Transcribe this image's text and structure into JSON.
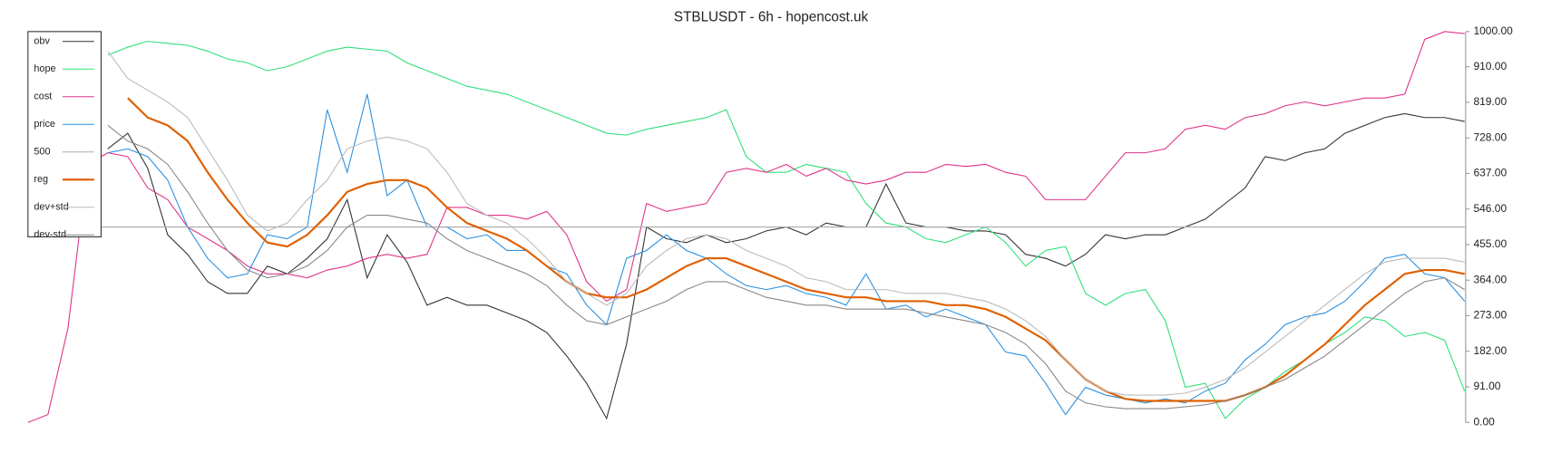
{
  "chart_data": {
    "type": "line",
    "title": "STBLUSDT - 6h - hopencost.uk",
    "ylim": [
      0,
      1000
    ],
    "yticks": [
      {
        "value": 0,
        "label": "0.00"
      },
      {
        "value": 91,
        "label": "91.00"
      },
      {
        "value": 182,
        "label": "182.00"
      },
      {
        "value": 273,
        "label": "273.00"
      },
      {
        "value": 364,
        "label": "364.00"
      },
      {
        "value": 455,
        "label": "455.00"
      },
      {
        "value": 546,
        "label": "546.00"
      },
      {
        "value": 637,
        "label": "637.00"
      },
      {
        "value": 728,
        "label": "728.00"
      },
      {
        "value": 819,
        "label": "819.00"
      },
      {
        "value": 910,
        "label": "910.00"
      },
      {
        "value": 1000,
        "label": "1000.00"
      }
    ],
    "legend": "upper left",
    "series": [
      {
        "name": "obv",
        "color": "#333333",
        "width": 1,
        "values": [
          null,
          null,
          null,
          null,
          700,
          740,
          650,
          480,
          430,
          360,
          330,
          330,
          400,
          380,
          420,
          470,
          570,
          370,
          480,
          410,
          300,
          320,
          300,
          300,
          280,
          260,
          230,
          170,
          100,
          10,
          200,
          500,
          470,
          460,
          480,
          460,
          470,
          490,
          500,
          480,
          510,
          500,
          500,
          610,
          510,
          500,
          500,
          490,
          490,
          480,
          430,
          420,
          400,
          430,
          480,
          470,
          480,
          480,
          500,
          520,
          560,
          600,
          680,
          670,
          690,
          700,
          740,
          760,
          780,
          790,
          780,
          780,
          770
        ]
      },
      {
        "name": "hope",
        "color": "#2ee07a",
        "width": 1,
        "values": [
          null,
          null,
          null,
          null,
          940,
          960,
          975,
          970,
          965,
          950,
          930,
          920,
          900,
          910,
          930,
          950,
          960,
          955,
          950,
          920,
          900,
          880,
          860,
          850,
          840,
          820,
          800,
          780,
          760,
          740,
          735,
          750,
          760,
          770,
          780,
          800,
          680,
          640,
          640,
          660,
          650,
          640,
          560,
          510,
          500,
          470,
          460,
          480,
          500,
          460,
          400,
          440,
          450,
          330,
          300,
          330,
          340,
          260,
          90,
          100,
          10,
          60,
          90,
          130,
          160,
          200,
          230,
          270,
          260,
          220,
          230,
          210,
          80
        ]
      },
      {
        "name": "cost",
        "color": "#e0338a",
        "width": 1,
        "values": [
          0,
          20,
          240,
          660,
          690,
          680,
          600,
          570,
          500,
          470,
          440,
          400,
          380,
          380,
          370,
          390,
          400,
          420,
          430,
          420,
          430,
          550,
          550,
          530,
          530,
          520,
          540,
          480,
          360,
          310,
          340,
          560,
          540,
          550,
          560,
          640,
          650,
          640,
          660,
          630,
          650,
          620,
          610,
          620,
          640,
          640,
          660,
          655,
          660,
          640,
          630,
          570,
          570,
          570,
          630,
          690,
          690,
          700,
          750,
          760,
          750,
          780,
          790,
          810,
          820,
          810,
          820,
          830,
          830,
          840,
          980,
          1000,
          995
        ]
      },
      {
        "name": "price",
        "color": "#2a8fe0",
        "width": 1,
        "values": [
          null,
          null,
          null,
          null,
          690,
          700,
          680,
          620,
          500,
          420,
          370,
          380,
          480,
          470,
          500,
          800,
          640,
          840,
          580,
          620,
          500,
          500,
          470,
          480,
          440,
          440,
          400,
          380,
          300,
          250,
          420,
          440,
          480,
          440,
          420,
          380,
          350,
          340,
          350,
          330,
          320,
          300,
          380,
          290,
          300,
          270,
          290,
          270,
          250,
          180,
          170,
          100,
          20,
          90,
          70,
          60,
          50,
          60,
          50,
          80,
          100,
          160,
          200,
          250,
          270,
          280,
          310,
          360,
          420,
          430,
          380,
          370,
          310
        ]
      },
      {
        "name": "500",
        "color": "#aaaaaa",
        "width": 1,
        "values": [
          500,
          500,
          500,
          500,
          500,
          500,
          500,
          500,
          500,
          500,
          500,
          500,
          500,
          500,
          500,
          500,
          500,
          500,
          500,
          500,
          500,
          500,
          500,
          500,
          500,
          500,
          500,
          500,
          500,
          500,
          500,
          500,
          500,
          500,
          500,
          500,
          500,
          500,
          500,
          500,
          500,
          500,
          500,
          500,
          500,
          500,
          500,
          500,
          500,
          500,
          500,
          500,
          500,
          500,
          500,
          500,
          500,
          500,
          500,
          500,
          500,
          500,
          500,
          500,
          500,
          500,
          500,
          500,
          500,
          500,
          500,
          500,
          500
        ]
      },
      {
        "name": "reg",
        "color": "#e06000",
        "width": 2,
        "values": [
          null,
          null,
          null,
          null,
          null,
          830,
          780,
          760,
          720,
          640,
          570,
          510,
          460,
          450,
          480,
          530,
          590,
          610,
          620,
          620,
          600,
          550,
          510,
          490,
          470,
          440,
          400,
          360,
          330,
          320,
          320,
          340,
          370,
          400,
          420,
          420,
          400,
          380,
          360,
          340,
          330,
          320,
          320,
          310,
          310,
          310,
          300,
          300,
          290,
          270,
          240,
          210,
          160,
          110,
          80,
          60,
          55,
          55,
          55,
          55,
          55,
          70,
          90,
          120,
          160,
          200,
          250,
          300,
          340,
          380,
          390,
          390,
          380
        ]
      },
      {
        "name": "dev+std",
        "color": "#bbbbbb",
        "width": 1,
        "values": [
          null,
          null,
          null,
          null,
          950,
          880,
          850,
          820,
          780,
          700,
          620,
          530,
          490,
          510,
          570,
          620,
          700,
          720,
          730,
          720,
          700,
          640,
          560,
          530,
          510,
          470,
          420,
          360,
          330,
          300,
          330,
          400,
          440,
          470,
          480,
          470,
          440,
          420,
          400,
          370,
          360,
          340,
          340,
          340,
          330,
          330,
          330,
          320,
          310,
          290,
          260,
          220,
          160,
          110,
          80,
          70,
          70,
          70,
          75,
          90,
          110,
          140,
          180,
          220,
          260,
          300,
          340,
          380,
          410,
          420,
          420,
          420,
          410
        ]
      },
      {
        "name": "dev-std",
        "color": "#888888",
        "width": 1,
        "values": [
          null,
          null,
          null,
          null,
          760,
          720,
          700,
          660,
          590,
          510,
          440,
          390,
          370,
          380,
          400,
          440,
          500,
          530,
          530,
          520,
          510,
          470,
          440,
          420,
          400,
          380,
          350,
          300,
          260,
          250,
          270,
          290,
          310,
          340,
          360,
          360,
          340,
          320,
          310,
          300,
          300,
          290,
          290,
          290,
          290,
          280,
          270,
          260,
          250,
          230,
          200,
          150,
          80,
          50,
          40,
          35,
          35,
          35,
          40,
          45,
          55,
          70,
          90,
          110,
          140,
          170,
          210,
          250,
          290,
          330,
          360,
          370,
          340
        ]
      }
    ]
  }
}
